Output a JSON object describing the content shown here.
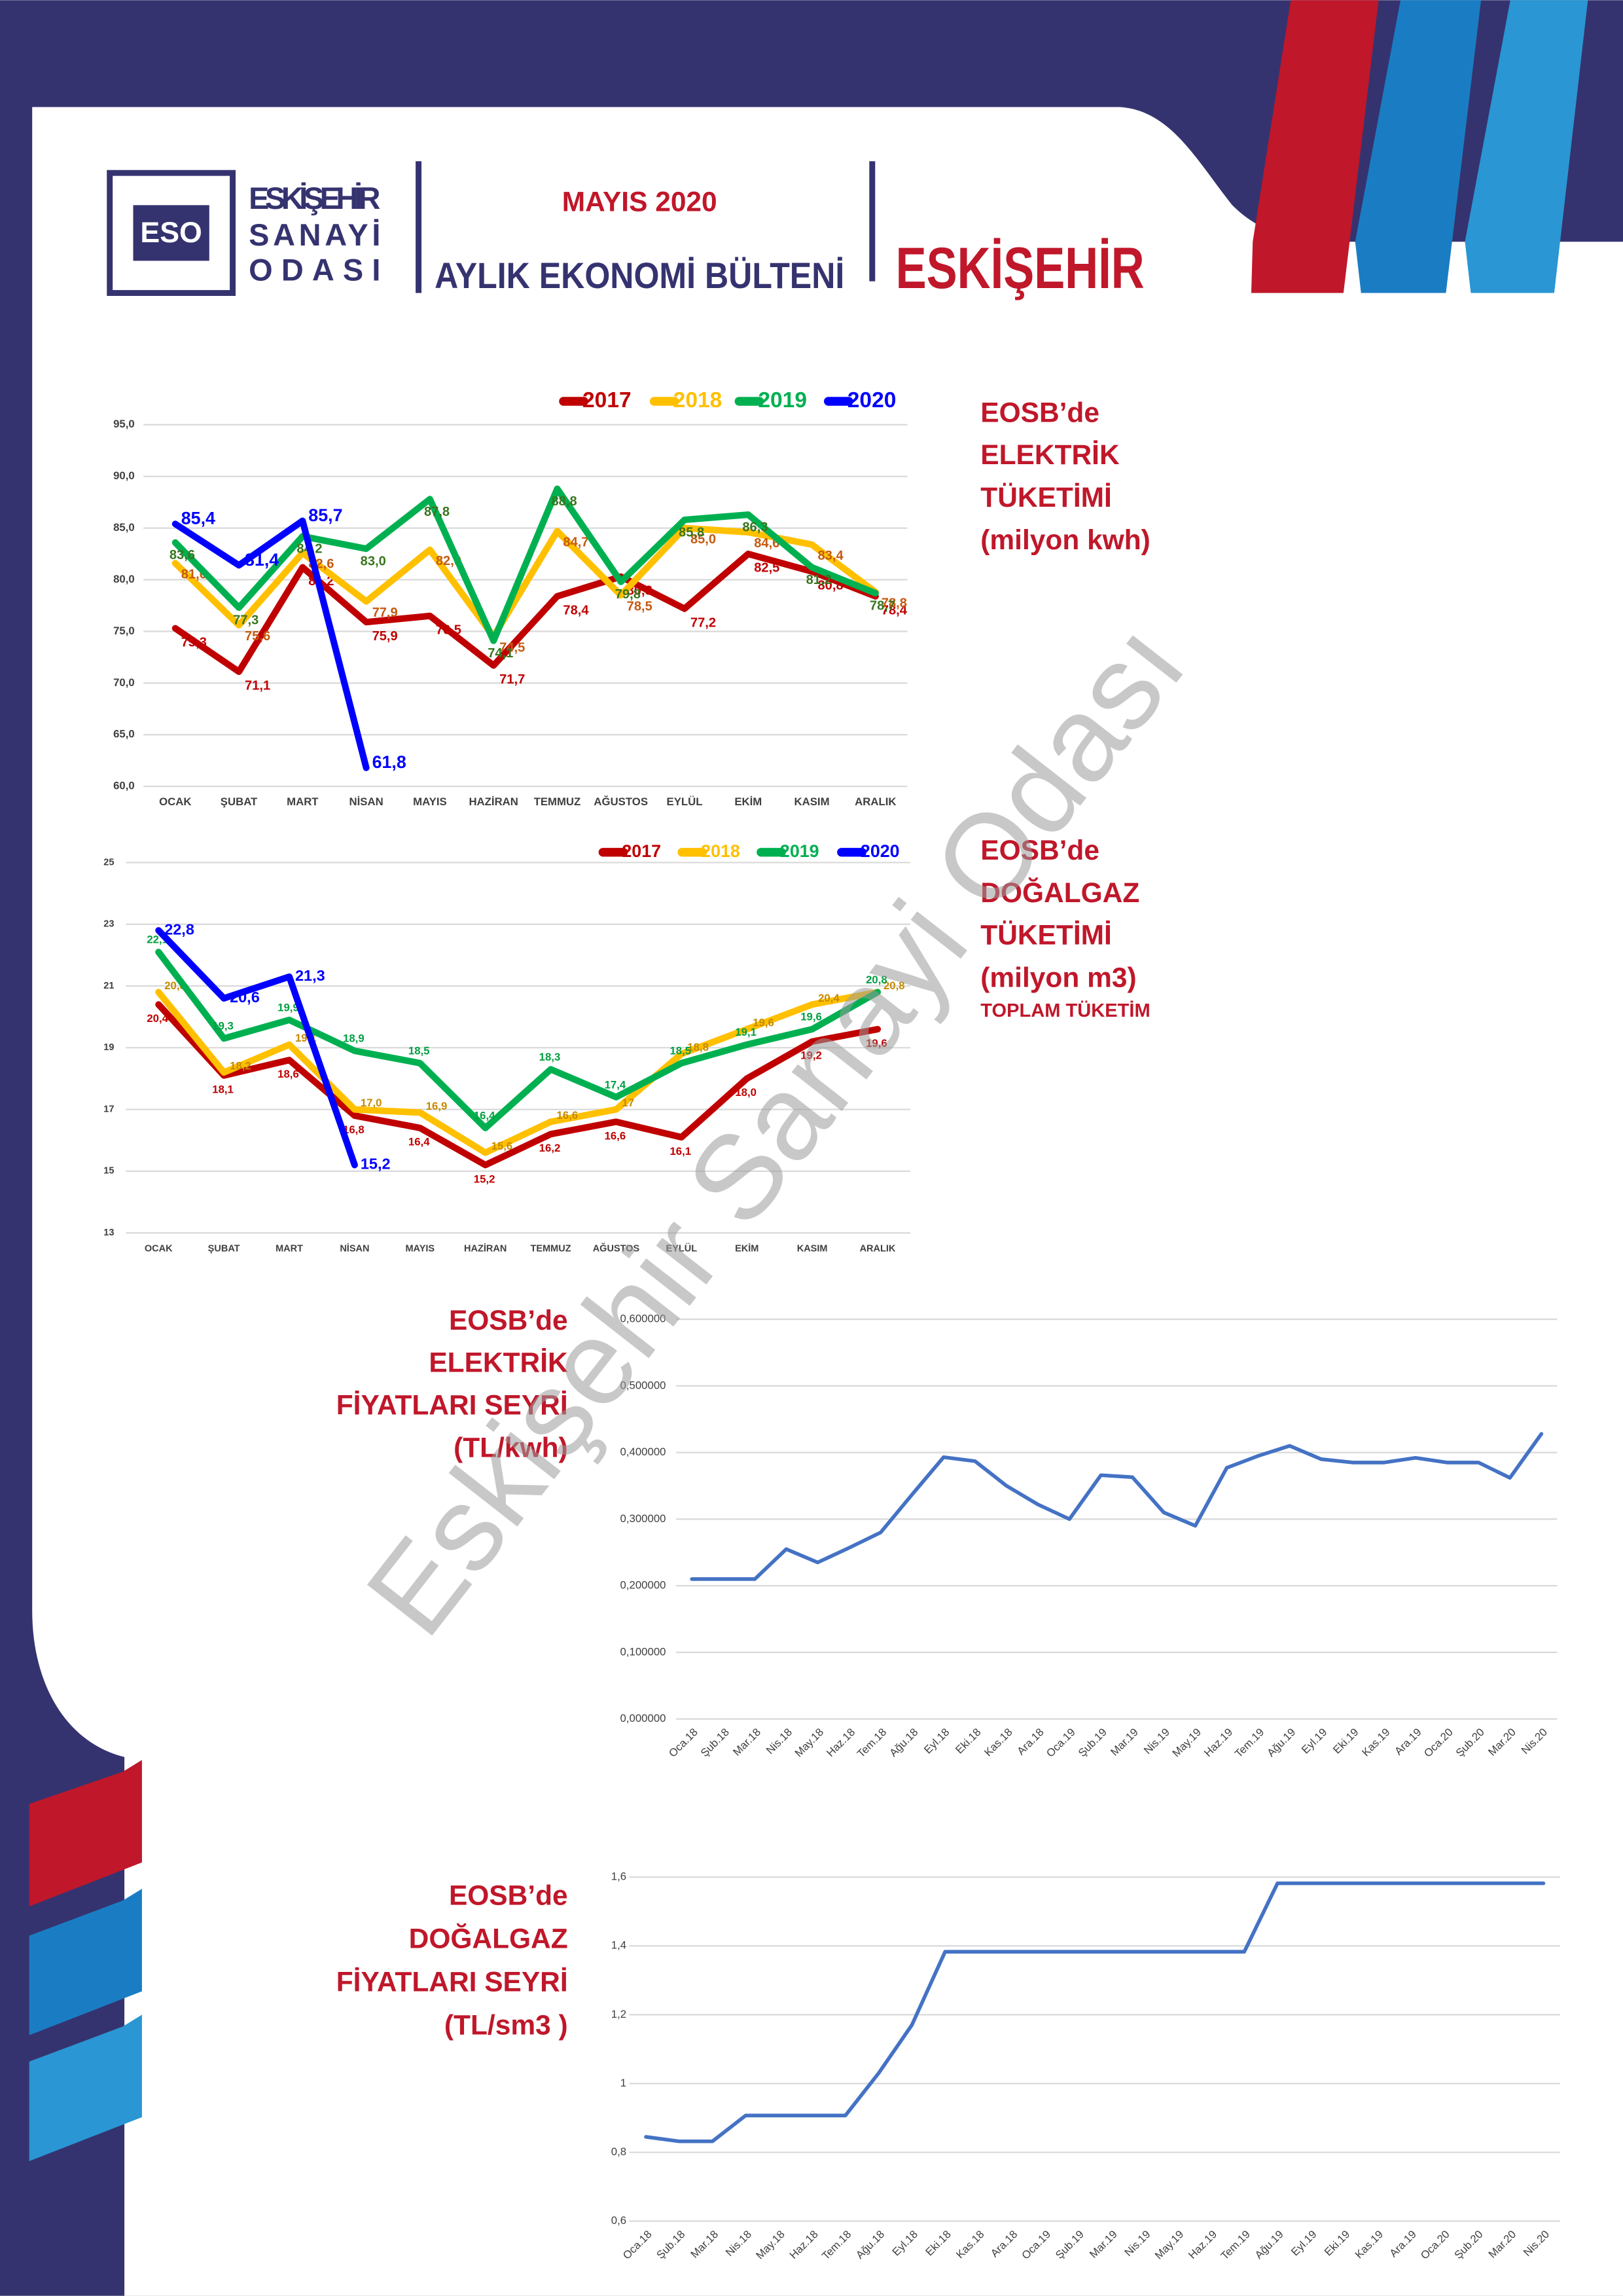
{
  "header": {
    "logo": "ESO",
    "org_lines": [
      "ESKİŞEHİR",
      "SANAYİ",
      "ODASI"
    ],
    "month": "MAYIS 2020",
    "bulletin": "AYLIK EKONOMİ BÜLTENİ",
    "city": "ESKİŞEHİR"
  },
  "watermark": "Eskişehir Sanayi Odası",
  "chart_data": [
    {
      "type": "line",
      "title": [
        "EOSB’de",
        "ELEKTRİK",
        "TÜKETİMİ",
        "(milyon kwh)"
      ],
      "categories": [
        "OCAK",
        "ŞUBAT",
        "MART",
        "NİSAN",
        "MAYIS",
        "HAZİRAN",
        "TEMMUZ",
        "AĞUSTOS",
        "EYLÜL",
        "EKİM",
        "KASIM",
        "ARALIK"
      ],
      "ylim": [
        60,
        95
      ],
      "yticks": [
        {
          "value": 60,
          "label": "60,0"
        },
        {
          "value": 65,
          "label": "65,0"
        },
        {
          "value": 70,
          "label": "70,0"
        },
        {
          "value": 75,
          "label": "75,0"
        },
        {
          "value": 80,
          "label": "80,0"
        },
        {
          "value": 85,
          "label": "85,0"
        },
        {
          "value": 90,
          "label": "90,0"
        },
        {
          "value": 95,
          "label": "95,0"
        }
      ],
      "grid": true,
      "series": [
        {
          "name": "2017",
          "color": "#c00000",
          "label_color": "#c00000",
          "values": [
            75.3,
            71.1,
            81.2,
            75.9,
            76.5,
            71.7,
            78.4,
            80.3,
            77.2,
            82.5,
            80.8,
            78.4
          ],
          "value_labels": [
            "75,3",
            "71,1",
            "81,2",
            "75,9",
            "76,5",
            "71,7",
            "78,4",
            "80,3",
            "77,2",
            "82,5",
            "80,8",
            "78,4"
          ]
        },
        {
          "name": "2018",
          "color": "#ffc000",
          "label_color": "#c55a11",
          "values": [
            81.6,
            75.6,
            82.6,
            77.9,
            82.9,
            74.5,
            84.7,
            78.5,
            85.0,
            84.6,
            83.4,
            78.8
          ],
          "value_labels": [
            "81,6",
            "75,6",
            "82,6",
            "77,9",
            "82,9",
            "74,5",
            "84,7",
            "78,5",
            "85,0",
            "84,6",
            "83,4",
            "78,8"
          ]
        },
        {
          "name": "2019",
          "color": "#00b050",
          "label_color": "#38761d",
          "values": [
            83.6,
            77.3,
            84.2,
            83.0,
            87.8,
            74.1,
            88.8,
            79.8,
            85.8,
            86.3,
            81.2,
            78.7
          ],
          "value_labels": [
            "83,6",
            "77,3",
            "84,2",
            "83,0",
            "87,8",
            "74,1",
            "88,8",
            "79,8",
            "85,8",
            "86,3",
            "81,2",
            "78,7"
          ]
        },
        {
          "name": "2020",
          "color": "#0000ff",
          "label_color": "#0000ff",
          "values": [
            85.4,
            81.4,
            85.7,
            61.8,
            null,
            null,
            null,
            null,
            null,
            null,
            null,
            null
          ],
          "value_labels": [
            "85,4",
            "81,4",
            "85,7",
            "61,8",
            null,
            null,
            null,
            null,
            null,
            null,
            null,
            null
          ]
        }
      ]
    },
    {
      "type": "line",
      "title": [
        "EOSB’de",
        "DOĞALGAZ",
        "TÜKETİMİ",
        "(milyon m3)"
      ],
      "subtitle": "TOPLAM TÜKETİM",
      "categories": [
        "OCAK",
        "ŞUBAT",
        "MART",
        "NİSAN",
        "MAYIS",
        "HAZİRAN",
        "TEMMUZ",
        "AĞUSTOS",
        "EYLÜL",
        "EKİM",
        "KASIM",
        "ARALIK"
      ],
      "ylim": [
        13,
        25
      ],
      "yticks": [
        13,
        15,
        17,
        19,
        21,
        23,
        25
      ],
      "grid": true,
      "series": [
        {
          "name": "2017",
          "color": "#c00000",
          "label_color": "#c00000",
          "values": [
            20.4,
            18.1,
            18.6,
            16.8,
            16.4,
            15.2,
            16.2,
            16.6,
            16.1,
            18.0,
            19.2,
            19.6
          ],
          "value_labels": [
            "20,4",
            "18,1",
            "18,6",
            "16,8",
            "16,4",
            "15,2",
            "16,2",
            "16,6",
            "16,1",
            "18,0",
            "19,2",
            "19,6"
          ]
        },
        {
          "name": "2018",
          "color": "#ffc000",
          "label_color": "#c58a00",
          "values": [
            20.8,
            18.2,
            19.1,
            17.0,
            16.9,
            15.6,
            16.6,
            17,
            18.8,
            19.6,
            20.4,
            20.8
          ],
          "value_labels": [
            "20,8",
            "18,2",
            "19,1",
            "17,0",
            "16,9",
            "15,6",
            "16,6",
            "17",
            "18,8",
            "19,6",
            "20,4",
            "20,8"
          ]
        },
        {
          "name": "2019",
          "color": "#00b050",
          "label_color": "#00a040",
          "values": [
            22.1,
            19.3,
            19.9,
            18.9,
            18.5,
            16.4,
            18.3,
            17.4,
            18.5,
            19.1,
            19.6,
            20.8
          ],
          "value_labels": [
            "22,1",
            "19,3",
            "19,9",
            "18,9",
            "18,5",
            "16,4",
            "18,3",
            "17,4",
            "18,5",
            "19,1",
            "19,6",
            "20,8"
          ]
        },
        {
          "name": "2020",
          "color": "#0000ff",
          "label_color": "#0000ff",
          "values": [
            22.8,
            20.6,
            21.3,
            15.2,
            null,
            null,
            null,
            null,
            null,
            null,
            null,
            null
          ],
          "value_labels": [
            "22,8",
            "20,6",
            "21,3",
            "15,2",
            null,
            null,
            null,
            null,
            null,
            null,
            null,
            null
          ]
        }
      ]
    },
    {
      "type": "line",
      "title": [
        "EOSB’de",
        "ELEKTRİK",
        "FİYATLARI SEYRİ",
        "(TL/kwh)"
      ],
      "categories": [
        "Oca.18",
        "Şub.18",
        "Mar.18",
        "Nis.18",
        "May.18",
        "Haz.18",
        "Tem.18",
        "Ağu.18",
        "Eyl.18",
        "Eki.18",
        "Kas.18",
        "Ara.18",
        "Oca.19",
        "Şub.19",
        "Mar.19",
        "Nis.19",
        "May.19",
        "Haz.19",
        "Tem.19",
        "Ağu.19",
        "Eyl.19",
        "Eki.19",
        "Kas.19",
        "Ara.19",
        "Oca.20",
        "Şub.20",
        "Mar.20",
        "Nis.20"
      ],
      "values": [
        0.21,
        0.21,
        0.21,
        0.255,
        0.235,
        0.257,
        0.28,
        0.337,
        0.393,
        0.387,
        0.35,
        0.322,
        0.3,
        0.366,
        0.363,
        0.31,
        0.29,
        0.377,
        0.395,
        0.41,
        0.39,
        0.385,
        0.385,
        0.392,
        0.385,
        0.385,
        0.362,
        0.428
      ],
      "color": "#4472c4",
      "ylim": [
        0,
        0.6
      ],
      "yticks": [
        {
          "value": 0,
          "label": "0,000000"
        },
        {
          "value": 0.1,
          "label": "0,100000"
        },
        {
          "value": 0.2,
          "label": "0,200000"
        },
        {
          "value": 0.3,
          "label": "0,300000"
        },
        {
          "value": 0.4,
          "label": "0,400000"
        },
        {
          "value": 0.5,
          "label": "0,500000"
        },
        {
          "value": 0.6,
          "label": "0,600000"
        }
      ],
      "grid": true
    },
    {
      "type": "line",
      "title": [
        "EOSB’de",
        "DOĞALGAZ",
        "FİYATLARI SEYRİ",
        "(TL/sm3 )"
      ],
      "categories": [
        "Oca.18",
        "Şub.18",
        "Mar.18",
        "Nis.18",
        "May.18",
        "Haz.18",
        "Tem.18",
        "Ağu.18",
        "Eyl.18",
        "Eki.18",
        "Kas.18",
        "Ara.18",
        "Oca.19",
        "Şub.19",
        "Mar.19",
        "Nis.19",
        "May.19",
        "Haz.19",
        "Tem.19",
        "Ağu.19",
        "Eyl.19",
        "Eki.19",
        "Kas.19",
        "Ara.19",
        "Oca.20",
        "Şub.20",
        "Mar.20",
        "Nis.20"
      ],
      "values": [
        0.845,
        0.832,
        0.832,
        0.907,
        0.907,
        0.907,
        0.907,
        1.03,
        1.17,
        1.383,
        1.383,
        1.383,
        1.383,
        1.383,
        1.383,
        1.383,
        1.383,
        1.383,
        1.383,
        1.582,
        1.582,
        1.582,
        1.582,
        1.582,
        1.582,
        1.582,
        1.582,
        1.582
      ],
      "color": "#4472c4",
      "ylim": [
        0.6,
        1.6
      ],
      "yticks": [
        {
          "value": 0.6,
          "label": "0,6"
        },
        {
          "value": 0.8,
          "label": "0,8"
        },
        1,
        {
          "value": 1.2,
          "label": "1,2"
        },
        {
          "value": 1.4,
          "label": "1,4"
        },
        {
          "value": 1.6,
          "label": "1,6"
        }
      ],
      "grid": true
    }
  ]
}
